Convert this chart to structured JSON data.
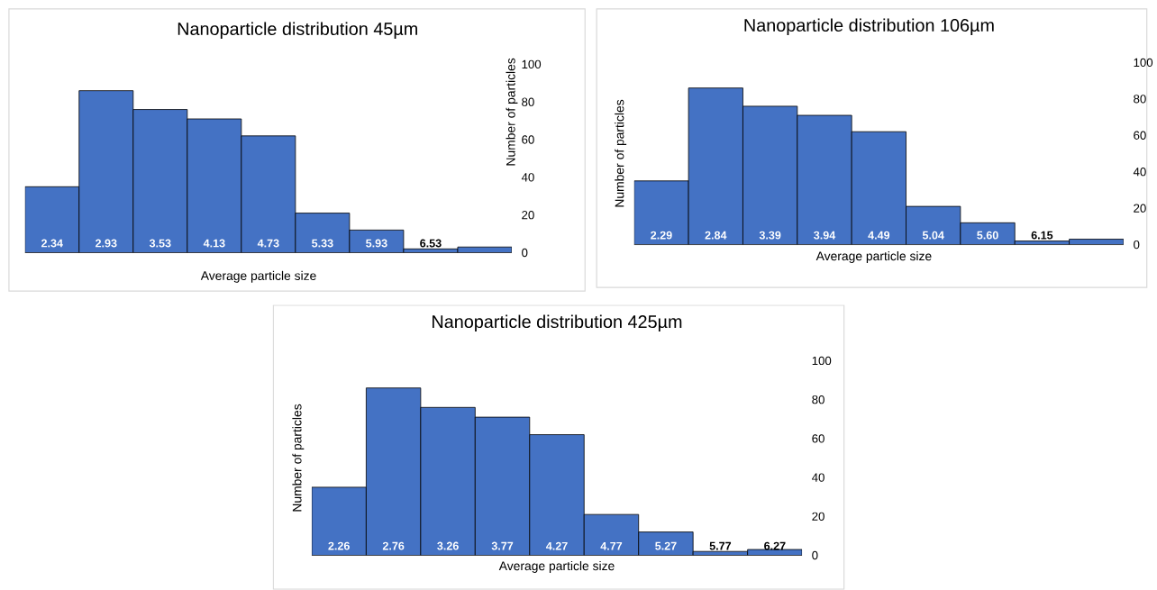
{
  "chart_data": [
    {
      "type": "bar",
      "title": "Nanoparticle distribution 45µm",
      "xlabel": "Average particle size",
      "ylabel": "Number of particles",
      "categories": [
        "2.34",
        "2.93",
        "3.53",
        "4.13",
        "4.73",
        "5.33",
        "5.93",
        "6.53",
        null
      ],
      "values": [
        35,
        86,
        76,
        71,
        62,
        21,
        12,
        2,
        3
      ],
      "color": "#4472c4",
      "ylim": [
        0,
        100
      ],
      "yticks": [
        0,
        20,
        40,
        60,
        80,
        100
      ]
    },
    {
      "type": "bar",
      "title": "Nanoparticle distribution 106µm",
      "xlabel": "Average particle size",
      "ylabel": "Number of particles",
      "categories": [
        "2.29",
        "2.84",
        "3.39",
        "3.94",
        "4.49",
        "5.04",
        "5.60",
        "6.15",
        null
      ],
      "values": [
        35,
        86,
        76,
        71,
        62,
        21,
        12,
        2,
        3
      ],
      "color": "#4472c4",
      "ylim": [
        0,
        100
      ],
      "yticks": [
        0,
        20,
        40,
        60,
        80,
        100
      ]
    },
    {
      "type": "bar",
      "title": "Nanoparticle distribution 425µm",
      "xlabel": "Average particle size",
      "ylabel": "Number of particles",
      "categories": [
        "2.26",
        "2.76",
        "3.26",
        "3.77",
        "4.27",
        "4.77",
        "5.27",
        "5.77",
        "6.27"
      ],
      "values": [
        35,
        86,
        76,
        71,
        62,
        21,
        12,
        2,
        3
      ],
      "color": "#4472c4",
      "ylim": [
        0,
        100
      ],
      "yticks": [
        0,
        20,
        40,
        60,
        80,
        100
      ]
    }
  ]
}
